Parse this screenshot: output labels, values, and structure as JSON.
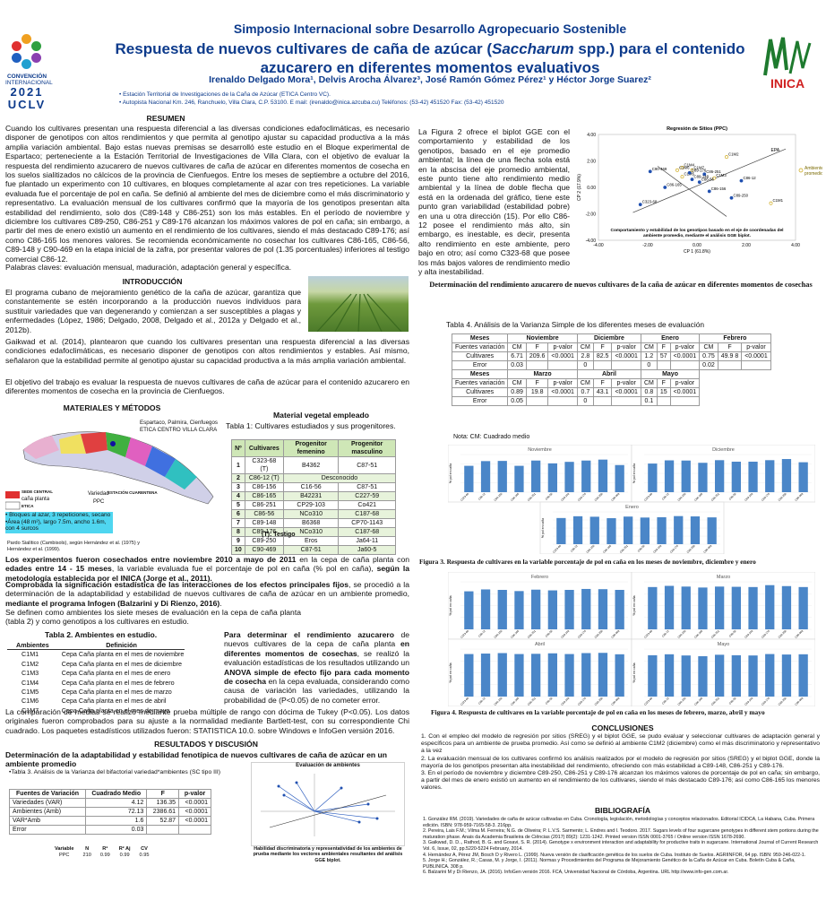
{
  "header": {
    "symposium": "Simposio Internacional sobre Desarrollo Agropecuario Sostenible",
    "title_part1": "Respuesta de nuevos cultivares de caña de azúcar (",
    "title_italic": "Saccharum",
    "title_part2": " spp.) para el contenido azucarero en diferentes momentos evaluativos",
    "authors": "Irenaldo Delgado Mora¹, Delvis Arocha Álvarez³, José Ramón Gómez Pérez¹ y Héctor Jorge Suarez²",
    "affil1": "• Estación Territorial de Investigaciones de la Caña de Azúcar (ETICA Centro VC).",
    "affil2": "• Autopista Nacional Km. 246, Ranchuelo, Villa Clara, C.P. 53100. E mail: (irenaldo@inica.azcuba.cu) Teléfonos: (53-42) 451520 Fax: (53-42) 451520",
    "logo_left_line1": "CONVENCIÓN",
    "logo_left_line2": "INTERNACIONAL",
    "logo_left_year": "2021",
    "logo_left_acr": "UCLV",
    "logo_right": "INICA"
  },
  "resumen": {
    "heading": "RESUMEN",
    "text": "Cuando los cultivares presentan una respuesta diferencial a las diversas condiciones edafoclimáticas, es necesario disponer de genotipos con altos rendimientos y que permita al genotipo ajustar su capacidad productiva a la más amplia variación ambiental. Bajo estas nuevas premisas se desarrolló este estudio en el Bloque experimental de Espartaco; perteneciente a la Estación Territorial de Investigaciones de Villa Clara, con el objetivo de evaluar la respuesta del rendimiento azucarero de nuevos cultivares de caña de azúcar en diferentes momentos de cosecha en los suelos sialitizados no cálcicos de la provincia de Cienfuegos. Entre los meses de septiembre a octubre del 2016, fue plantado un experimento con 10 cultivares, en bloques completamente al azar con tres repeticiones. La variable evaluada fue el porcentaje de pol en caña. Se definió al ambiente del mes de diciembre como el más discriminatorio y representativo. La evaluación mensual de los cultivares confirmó que la mayoría de los genotipos presentan alta estabilidad del rendimiento, solo dos (C89-148 y C86-251) son los más estables. En el período de noviembre y diciembre los cultivares C89-250, C86-251 y C89-176 alcanzan los máximos valores de pol en caña; sin embargo, a partir del mes de enero existió un aumento en el rendimiento de los cultivares, siendo el más destacado C89-176; así como C86-165 los menores valores. Se recomienda económicamente no cosechar los cultivares C86-165, C86-56, C89-148 y C90-469 en la etapa inicial de la zafra, por presentar valores de pol (1.35 porcentuales) inferiores al testigo comercial C86-12.",
    "keywords": "Palabras claves: evaluación mensual, maduración, adaptación general y específica."
  },
  "intro": {
    "heading": "INTRODUCCIÓN",
    "p1": "El programa cubano de mejoramiento genético de la caña de azúcar, garantiza que constantemente se estén incorporando a la producción nuevos individuos para sustituir variedades que van degenerando y comienzan a ser susceptibles a plagas y enfermedades (López, 1986; Delgado, 2008, Delgado et al., 2012a y Delgado et al., 2012b).",
    "p2": "Gaikwad et al. (2014), plantearon que cuando los cultivares presentan una respuesta diferencial a las diversas condiciones edafoclimáticas, es necesario disponer de genotipos con altos rendimientos y estables. Así mismo, señalaron que la estabilidad permite al genotipo ajustar su capacidad productiva a la más amplia variación ambiental.",
    "p3": "El objetivo del trabajo es evaluar la respuesta de nuevos cultivares de caña de azúcar para el contenido azucarero en diferentes momentos de cosecha en la provincia de Cienfuegos."
  },
  "methods": {
    "heading": "MATERIALES Y MÉTODOS",
    "map_label": "Espartaco, Palmira, Cienfuegos ETICA  CENTRO VILLA CLARA",
    "legend1": "SEDE CENTRAL",
    "legend2": "caña planta",
    "legend3": "ETICA",
    "legend_variedad": "Variedad",
    "legend_ppc": "PPC",
    "legend_cuarentena": "ESTACIÓN CUARENTENA",
    "block_lines": [
      "• Bloques al azar, 3 repeticiones, secano",
      "•Área (48 m²), largo 7.5m, ancho 1.6m,",
      "con 4 surcos"
    ],
    "soil": "Pardo Sialítico (Cambisols), según Hernández et al. (1975) y Hernández et al. (1999).",
    "mat_heading": "Material vegetal empleado",
    "table1_caption": "Tabla  1:  Cultivares  estudiados  y  sus progenitores.",
    "table1_note": "(T): Testigo",
    "t1_headers": [
      "Nº",
      "Cultivares",
      "Progenitor femenino",
      "Progenitor masculino"
    ],
    "t1_rows": [
      [
        "1",
        "C323-68 (T)",
        "B4362",
        "C87-51"
      ],
      [
        "2",
        "C86-12 (T)",
        "Desconocido",
        ""
      ],
      [
        "3",
        "C86-156",
        "C16-56",
        "C87-51"
      ],
      [
        "4",
        "C86-165",
        "B42231",
        "C227-59"
      ],
      [
        "5",
        "C86-251",
        "CP29-103",
        "Co421"
      ],
      [
        "6",
        "C86-56",
        "NCo310",
        "C187-68"
      ],
      [
        "7",
        "C89-148",
        "B6368",
        "CP70-1143"
      ],
      [
        "8",
        "C89-176",
        "NCo310",
        "C187-68"
      ],
      [
        "9",
        "C89-250",
        "Eros",
        "Ja64-11"
      ],
      [
        "10",
        "C90-469",
        "C87-51",
        "Ja60-5"
      ]
    ],
    "p_harvest_a": "Los experimentos fueron cosechados entre noviembre 2010 a mayo de 2011",
    "p_harvest_b": " en la cepa de caña planta con ",
    "p_harvest_c": "edades entre 14 - 15 meses",
    "p_harvest_d": ", la variable evaluada fue el porcentaje de pol en caña (% pol en caña), ",
    "p_harvest_e": "según la metodología establecida por el INICA (Jorge et al., 2011).",
    "p_anova_a": "Comprobada la significación estadística de las interacciones de los efectos principales fijos",
    "p_anova_b": ", se procedió a la determinación de la adaptabilidad y estabilidad de nuevos cultivares de caña de azúcar en un ambiente promedio, ",
    "p_anova_c": "mediante el programa Infogen (Balzarini y Di Rienzo, 2016)",
    "p_anova_d": ".",
    "p_env": "Se definen como ambientes los siete meses de evaluación en la cepa de caña planta (tabla 2) y como genotipos a los cultivares en estudio.",
    "table2_caption": "Tabla 2. Ambientes en estudio.",
    "t2_headers": [
      "Ambientes",
      "Definición"
    ],
    "t2_rows": [
      [
        "C1M1",
        "Cepa Caña planta en el mes de noviembre"
      ],
      [
        "C1M2",
        "Cepa Caña planta en el mes de diciembre"
      ],
      [
        "C1M3",
        "Cepa Caña planta en el mes de enero"
      ],
      [
        "C1M4",
        "Cepa Caña planta en el mes de febrero"
      ],
      [
        "C1M5",
        "Cepa Caña planta en el mes de marzo"
      ],
      [
        "C1M6",
        "Cepa Caña planta en el mes de abril"
      ],
      [
        "C1M7",
        "Cepa Caña planta en el mes de mayo"
      ]
    ],
    "p_perf_a": "Para determinar el rendimiento azucarero",
    "p_perf_b": " de nuevos cultivares de la cepa de caña planta ",
    "p_perf_c": "en diferentes momentos de cosechas",
    "p_perf_d": ", se realizó la evaluación estadísticas de los resultados utilizando un ",
    "p_perf_e": "ANOVA simple de efecto fijo para cada momento de cosecha",
    "p_perf_f": " en la cepa evaluada, considerando como causa de variación las variedades, utilizando la probabilidad de (P<0.05) de no cometer error.",
    "p_tukey": "La comparación de medias se realizó mediante prueba múltiple de rango con dócima de Tukey (P<0.05). Los datos originales fueron comprobados para su ajuste a la normalidad mediante Bartlett-test, con su correspondiente Chi cuadrado. Los paquetes estadísticos utilizados fueron: STATISTICA 10.0. sobre Windows e InfoGen versión 2016."
  },
  "results": {
    "heading": "RESULTADOS Y DISCUSIÓN",
    "subheading": "Determinación de la adaptabilidad y estabilidad fenotípica de nuevos cultivares de caña de azúcar en un ambiente promedio",
    "table3_caption": "•Tabla 3. Análisis de la Varianza del  bifactorial variedad*ambientes (SC tipo III)",
    "t3_headers": [
      "Fuentes de Variación",
      "Cuadrado Medio",
      "F",
      "p-valor"
    ],
    "t3_rows": [
      [
        "Variedades (VAR)",
        "4.12",
        "136.35",
        "<0.0001"
      ],
      [
        "Ambientes (Amb)",
        "72.13",
        "2386.61",
        "<0.0001"
      ],
      [
        "VAR*Amb",
        "1.6",
        "52.87",
        "<0.0001"
      ],
      [
        "Error",
        "0.03",
        "",
        ""
      ]
    ],
    "t3b_headers": [
      "Variable",
      "N",
      "R²",
      "R² Aj",
      "CV"
    ],
    "t3b_row": [
      "PPC",
      "210",
      "0.99",
      "0.99",
      "0.95"
    ],
    "fig_env_title": "Evaluación de ambientes",
    "fig_env_caption": "Habilidad discriminatoria y representatividad de los ambientes de prueba mediante los vectores ambientales resultantes del análisis GGE biplot.",
    "fig2_text": "La Figura 2 ofrece el biplot GGE con el comportamiento y estabilidad de los genotipos, basado en el eje promedio ambiental; la línea de una flecha sola está en la abscisa del eje promedio ambiental, este punto tiene alto rendimiento medio ambiental y la línea de doble flecha que está en la ordenada del gráfico, tiene este punto gran variabilidad (estabilidad pobre) en una u otra dirección (15). Por ello C86-12 posee el rendimiento más alto, sin embargo, es inestable, es decir, presenta alto rendimiento en este ambiente, pero bajo en otro; así como C323-68 que posee los más bajos valores de rendimiento medio y alta inestabilidad.",
    "biplot_title": "Regresión de Sitios (PPC)",
    "biplot_caption": "Comportamiento y estabilidad de los genotipos basado en el eje de coordenadas del ambiente promedio, mediante el análisis GGE biplot.",
    "biplot_xlabel": "CP 1 (61.8%)",
    "biplot_ylabel": "CP 2 (17.9%)",
    "biplot_legend": "Ambiente promedio",
    "biplot_epa": "EPA",
    "biplot_xticks": [
      "-4.00",
      "-2.00",
      "0.00",
      "2.00",
      "4.00"
    ],
    "biplot_yticks": [
      "4.00",
      "2.00",
      "0.00",
      "-2.00",
      "-4.00"
    ],
    "section_heading": "Determinación del rendimiento azucarero de nuevos cultivares de la caña de azúcar en diferentes momentos de cosechas",
    "table4_caption": "Tabla 4. Análisis de la Varianza Simple de los diferentes meses de evaluación",
    "t4_months_top": [
      "Meses",
      "Noviembre",
      "Diciembre",
      "Enero",
      "Febrero"
    ],
    "t4_sub": [
      "Fuentes variación",
      "CM",
      "F",
      "p-valor",
      "CM",
      "F",
      "p-valor",
      "CM",
      "F",
      "p-valor",
      "CM",
      "F",
      "p-valor"
    ],
    "t4_row_cult": [
      "Cultivares",
      "6.71",
      "209.6",
      "<0.0001",
      "2.8",
      "82.5",
      "<0.0001",
      "1.2",
      "57",
      "<0.0001",
      "0.75",
      "49.9 8",
      "<0.0001"
    ],
    "t4_row_err": [
      "Error",
      "0.03",
      "",
      "",
      "0",
      "",
      "",
      "0",
      "",
      "",
      "0.02",
      "",
      ""
    ],
    "t4_months_bottom": [
      "Meses",
      "Marzo",
      "Abril",
      "Mayo"
    ],
    "t4_sub2": [
      "Fuentes variación",
      "CM",
      "F",
      "p-valor",
      "CM",
      "F",
      "p-valor",
      "CM",
      "F",
      "p-valor"
    ],
    "t4_row_cult2": [
      "Cultivares",
      "0.89",
      "19.8",
      "<0.0001",
      "0.7",
      "43.1",
      "<0.0001",
      "0.8",
      "15",
      "<0.0001"
    ],
    "t4_row_err2": [
      "Error",
      "0.05",
      "",
      "",
      "0",
      "",
      "",
      "0.1",
      "",
      ""
    ],
    "t4_note": "Nota: CM: Cuadrado medio",
    "fig3_caption": "Figura 3. Respuesta de cultivares en la variable porcentaje de pol en caña en los meses de noviembre, diciembre y enero",
    "fig4_caption": "Figura 4. Respuesta de cultivares en la variable porcentaje de pol en caña en los meses de febrero, marzo, abril y mayo",
    "month_titles": [
      "Noviembre",
      "Diciembre",
      "Enero",
      "Febrero",
      "Marzo",
      "Abril",
      "Mayo"
    ]
  },
  "chart_data": [
    {
      "type": "scatter",
      "title": "Regresión de Sitios (PPC)",
      "xlabel": "CP 1 (61.8%)",
      "ylabel": "CP 2 (17.9%)",
      "xlim": [
        -4,
        4
      ],
      "ylim": [
        -4,
        4
      ],
      "points": [
        {
          "label": "C323-68",
          "x": -2.3,
          "y": -1.3
        },
        {
          "label": "C90-469",
          "x": -1.9,
          "y": 1.2
        },
        {
          "label": "C86-165",
          "x": -1.3,
          "y": 0.0
        },
        {
          "label": "C1M4",
          "x": -0.6,
          "y": 1.5
        },
        {
          "label": "C1M6",
          "x": -0.8,
          "y": 1.3
        },
        {
          "label": "C1M7",
          "x": -0.2,
          "y": 1.3
        },
        {
          "label": "C1M5",
          "x": -0.6,
          "y": 0.8
        },
        {
          "label": "C89-176",
          "x": -0.3,
          "y": 1.1
        },
        {
          "label": "C86-251",
          "x": 0.3,
          "y": 1.0
        },
        {
          "label": "C1M3",
          "x": 0.7,
          "y": 0.7
        },
        {
          "label": "C89-148",
          "x": -0.2,
          "y": 0.6
        },
        {
          "label": "C86-56",
          "x": 0.1,
          "y": 0.4
        },
        {
          "label": "C86-156",
          "x": 0.5,
          "y": -0.3
        },
        {
          "label": "C86-12",
          "x": 1.8,
          "y": 0.5
        },
        {
          "label": "C89-250",
          "x": 1.4,
          "y": -0.8
        },
        {
          "label": "C1M2",
          "x": 1.2,
          "y": 2.3
        },
        {
          "label": "C1M1",
          "x": 3.0,
          "y": -1.2
        }
      ]
    },
    {
      "type": "bar",
      "title": "Noviembre",
      "categories": [
        "C323-68",
        "C86-12",
        "C86-156",
        "C86-165",
        "C86-251",
        "C86-56",
        "C89-148",
        "C89-176",
        "C89-250",
        "C90-469"
      ],
      "values": [
        14.0,
        16.5,
        16.6,
        14.0,
        16.8,
        15.3,
        16.1,
        16.8,
        17.3,
        14.4
      ],
      "ylim": [
        0,
        20
      ]
    },
    {
      "type": "bar",
      "title": "Diciembre",
      "categories": [
        "C323-68",
        "C86-12",
        "C86-156",
        "C86-165",
        "C86-251",
        "C86-56",
        "C89-148",
        "C89-176",
        "C89-250",
        "C90-469"
      ],
      "values": [
        15.2,
        16.9,
        16.8,
        15.6,
        17.0,
        16.2,
        16.2,
        17.0,
        17.6,
        15.9
      ],
      "ylim": [
        0,
        20
      ]
    },
    {
      "type": "bar",
      "title": "Enero",
      "categories": [
        "C323-68",
        "C86-12",
        "C86-156",
        "C86-165",
        "C86-251",
        "C86-56",
        "C89-148",
        "C89-176",
        "C89-250",
        "C90-469"
      ],
      "values": [
        16.2,
        17.3,
        17.0,
        16.1,
        17.1,
        16.5,
        16.7,
        17.4,
        17.2,
        16.6
      ],
      "ylim": [
        0,
        20
      ]
    },
    {
      "type": "bar",
      "title": "Febrero",
      "categories": [
        "C323-68",
        "C86-12",
        "C86-156",
        "C86-165",
        "C86-251",
        "C86-56",
        "C89-148",
        "C89-176",
        "C89-250",
        "C90-469"
      ],
      "values": [
        16.0,
        16.8,
        16.6,
        16.1,
        16.7,
        16.4,
        16.6,
        17.0,
        16.9,
        16.6
      ],
      "ylim": [
        0,
        20
      ]
    },
    {
      "type": "bar",
      "title": "Marzo",
      "categories": [
        "C323-68",
        "C86-12",
        "C86-156",
        "C86-165",
        "C86-251",
        "C86-56",
        "C89-148",
        "C89-176",
        "C89-250",
        "C90-469"
      ],
      "values": [
        17.8,
        18.3,
        18.0,
        17.6,
        18.0,
        17.9,
        17.8,
        18.6,
        18.2,
        17.8
      ],
      "ylim": [
        0,
        20
      ]
    },
    {
      "type": "bar",
      "title": "Abril",
      "categories": [
        "C323-68",
        "C86-12",
        "C86-156",
        "C86-165",
        "C86-251",
        "C86-56",
        "C89-148",
        "C89-176",
        "C89-250",
        "C90-469"
      ],
      "values": [
        17.9,
        18.1,
        18.3,
        17.9,
        18.0,
        18.2,
        17.9,
        18.3,
        18.4,
        17.8
      ],
      "ylim": [
        0,
        20
      ]
    },
    {
      "type": "bar",
      "title": "Mayo",
      "categories": [
        "C323-68",
        "C86-12",
        "C86-156",
        "C86-165",
        "C86-251",
        "C86-56",
        "C89-148",
        "C89-176",
        "C89-250",
        "C90-469"
      ],
      "values": [
        17.4,
        17.8,
        17.3,
        17.0,
        17.6,
        17.4,
        17.3,
        17.9,
        17.7,
        17.8
      ],
      "ylim": [
        0,
        20
      ]
    }
  ],
  "conclusions": {
    "heading": "CONCLUSIONES",
    "items": [
      "1. Con el empleo del modelo de regresión por sitios (SREG) y el biplot GGE, se pudo evaluar y seleccionar cultivares de adaptación general y específicos para un ambiente de prueba promedio. Así como se definió al ambiente C1M2 (diciembre) como el más discriminatorio y representativo a la vez",
      "2. La evaluación mensual de los cultivares confirmó los análisis realizados por el modelo de regresión por sitios (SREG) y el biplot GGE, donde la mayoría de los genotipos presentan alta inestabilidad del rendimiento, ofreciendo con más estabilidad a C89-148, C86-251 y C89-176.",
      "3. En el período de noviembre y diciembre C89-250, C86-251 y C89-176 alcanzan los máximos valores de porcentaje de pol en caña; sin embargo, a partir del mes de enero existió un aumento en el rendimiento de los cultivares, siendo el más destacado C89-176; así como C86-165 los menores valores."
    ]
  },
  "bibliography": {
    "heading": "BIBLIOGRAFÍA",
    "items": [
      "1. González RM. (2019). Variedades de caña de azúcar cultivadas en Cuba. Cronología, legislación, metodologías y conceptos relacionados. Editorial ICIDCA, La Habana, Cuba. Primera edición. ISBN: 978-959-7165-58-3. 216pp.",
      "2. Pereira, Lais F.M.; Vilma M. Ferreira; N.G. de Oliveira; P. L.V.S. Sarmento; L. Endres and I. Teodoro. 2017. Sugars levels of four sugarcane genotypes in different stem portions during the maturation phase. Anais da Academia Brasileira de Ciências (2017) 89(2): 1231-1242. Printed version ISSN 0001-3765 / Online version ISSN 1678-2690.",
      "3. Gaikwad, D. D.., Rathod, B. G. and Gosavi, S. R. (2014). Genotype x environment interaction and adaptability for productive traits in sugarcane. International Journal of Current Research Vol. 6, Issue, 02, pp.5220-5224 February, 2014.",
      "4. Hernández A, Pérez JM, Bosch D y Rivero L. (1999). Nueva versión de clasificación genética de los suelos de Cuba. Instituto de Suelos. AGRIINFOR, 64 pp. ISBN: 959-246-022-1.",
      "5. Jorge H.; González, R.; Casas, M. y Jorge, I. (2011). Normas y Procedimientos del Programa de Mejoramiento Genético de la Caña de Azúcar en Cuba. Boletín Cuba & Caña, PUBLINICA. 308 p.",
      "6. Balzarini M y Di Rienzo, JA. (2016). InfoGen versión 2016. FCA, Universidad Nacional de Córdoba, Argentina. URL http://www.info-gen.com.ar."
    ]
  },
  "colors": {
    "title_blue": "#0d3b8c",
    "bar_blue": "#4a86c8",
    "table_green": "#cfe7b7",
    "cyan_box": "#4fd6f0"
  }
}
